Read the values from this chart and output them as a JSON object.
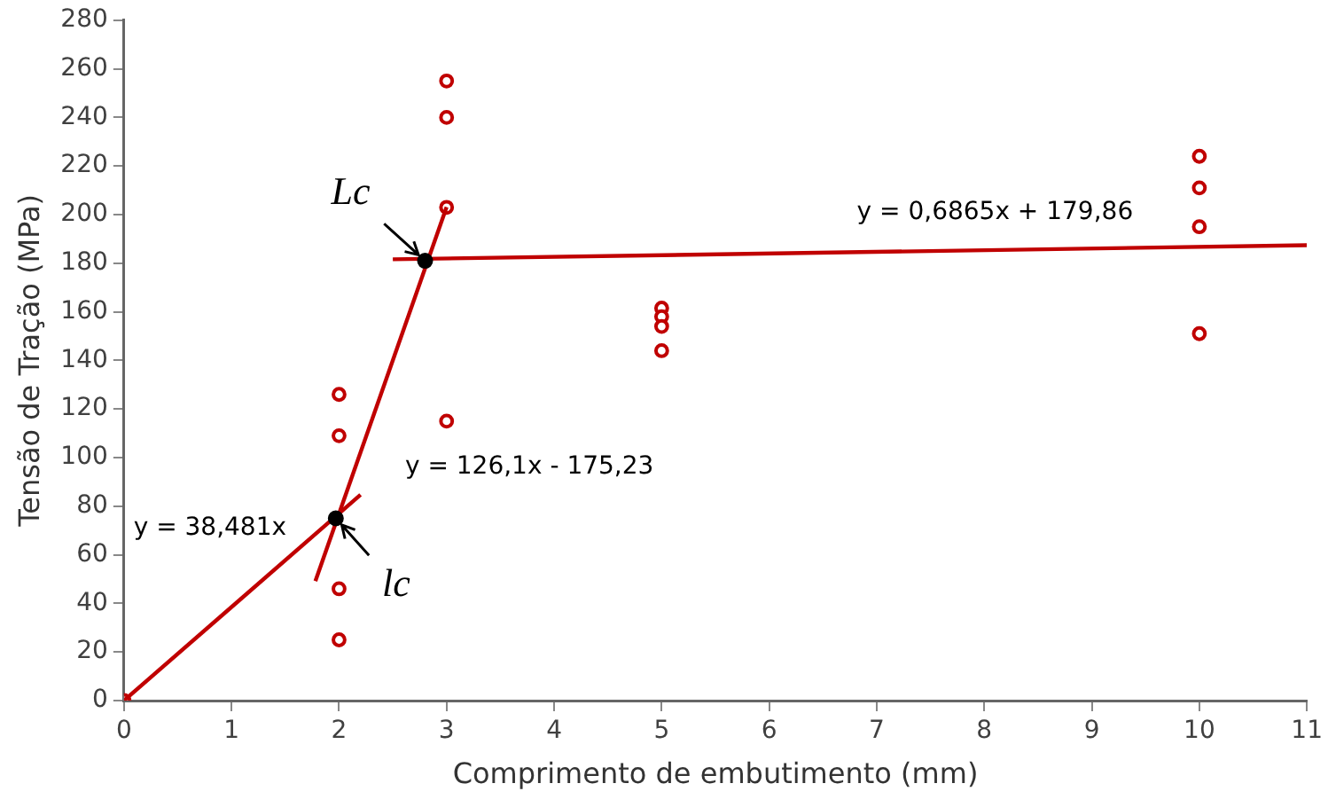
{
  "chart_data": {
    "type": "scatter",
    "xlabel": "Comprimento de embutimento (mm)",
    "ylabel": "Tensão de Tração (MPa)",
    "xlim": [
      0,
      11
    ],
    "xticks": [
      0,
      1,
      2,
      3,
      4,
      5,
      6,
      7,
      8,
      9,
      10,
      11
    ],
    "ylim": [
      0,
      280
    ],
    "yticks": [
      0,
      20,
      40,
      60,
      80,
      100,
      120,
      140,
      160,
      180,
      200,
      220,
      240,
      260,
      280
    ],
    "grid": false,
    "legend": false,
    "series": [
      {
        "type": "scatter",
        "marker": "circle",
        "color": "#c00000",
        "x": [
          0,
          2,
          2,
          2,
          2,
          3,
          3,
          3,
          3,
          5,
          5,
          5,
          5,
          10,
          10,
          10,
          10
        ],
        "values": [
          0,
          126,
          109,
          46,
          25,
          255,
          240,
          203,
          115,
          161.5,
          158,
          154,
          144,
          224,
          211,
          195,
          151
        ]
      },
      {
        "type": "line",
        "marker": "none",
        "color": "#c00000",
        "x": [
          0,
          2.2
        ],
        "values": [
          0,
          84.7
        ]
      },
      {
        "type": "line",
        "marker": "none",
        "color": "#c00000",
        "x": [
          1.78,
          3
        ],
        "values": [
          49.2,
          203.1
        ]
      },
      {
        "type": "line",
        "marker": "none",
        "color": "#c00000",
        "x": [
          2.5,
          11
        ],
        "values": [
          181.6,
          187.4
        ]
      },
      {
        "type": "scatter",
        "marker": "circle",
        "color": "#000000",
        "x": [
          1.97,
          2.8
        ],
        "values": [
          75,
          181
        ]
      }
    ],
    "annotations": [
      "y = 38,481x",
      "y = 126,1x - 175,23",
      "y = 0,6865x + 179,86",
      {
        "text": "Lc",
        "x": 2.8,
        "y": 181
      },
      {
        "text": "lc",
        "x": 1.97,
        "y": 75
      }
    ]
  }
}
